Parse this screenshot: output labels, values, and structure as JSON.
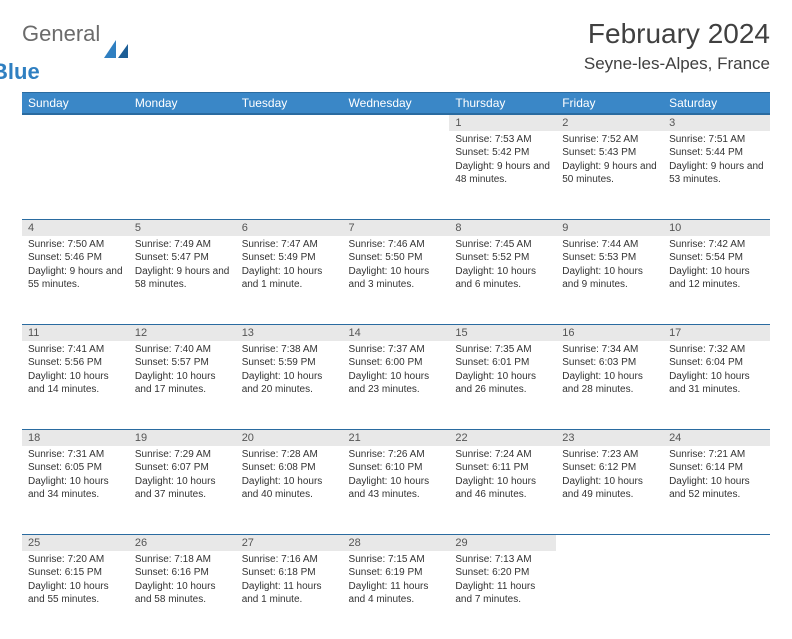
{
  "brand": {
    "general": "General",
    "blue": "Blue"
  },
  "colors": {
    "header_bg": "#3a87c7",
    "header_text": "#ffffff",
    "rule": "#2a6ba0",
    "daynum_bg": "#e8e8e8",
    "text": "#333333",
    "logo_gray": "#6b6b6b",
    "logo_blue": "#2f7fc1"
  },
  "title": "February 2024",
  "location": "Seyne-les-Alpes, France",
  "weekdays": [
    "Sunday",
    "Monday",
    "Tuesday",
    "Wednesday",
    "Thursday",
    "Friday",
    "Saturday"
  ],
  "layout": {
    "first_weekday_index": 4,
    "days_in_month": 29
  },
  "days": {
    "1": {
      "sunrise": "7:53 AM",
      "sunset": "5:42 PM",
      "daylight": "9 hours and 48 minutes."
    },
    "2": {
      "sunrise": "7:52 AM",
      "sunset": "5:43 PM",
      "daylight": "9 hours and 50 minutes."
    },
    "3": {
      "sunrise": "7:51 AM",
      "sunset": "5:44 PM",
      "daylight": "9 hours and 53 minutes."
    },
    "4": {
      "sunrise": "7:50 AM",
      "sunset": "5:46 PM",
      "daylight": "9 hours and 55 minutes."
    },
    "5": {
      "sunrise": "7:49 AM",
      "sunset": "5:47 PM",
      "daylight": "9 hours and 58 minutes."
    },
    "6": {
      "sunrise": "7:47 AM",
      "sunset": "5:49 PM",
      "daylight": "10 hours and 1 minute."
    },
    "7": {
      "sunrise": "7:46 AM",
      "sunset": "5:50 PM",
      "daylight": "10 hours and 3 minutes."
    },
    "8": {
      "sunrise": "7:45 AM",
      "sunset": "5:52 PM",
      "daylight": "10 hours and 6 minutes."
    },
    "9": {
      "sunrise": "7:44 AM",
      "sunset": "5:53 PM",
      "daylight": "10 hours and 9 minutes."
    },
    "10": {
      "sunrise": "7:42 AM",
      "sunset": "5:54 PM",
      "daylight": "10 hours and 12 minutes."
    },
    "11": {
      "sunrise": "7:41 AM",
      "sunset": "5:56 PM",
      "daylight": "10 hours and 14 minutes."
    },
    "12": {
      "sunrise": "7:40 AM",
      "sunset": "5:57 PM",
      "daylight": "10 hours and 17 minutes."
    },
    "13": {
      "sunrise": "7:38 AM",
      "sunset": "5:59 PM",
      "daylight": "10 hours and 20 minutes."
    },
    "14": {
      "sunrise": "7:37 AM",
      "sunset": "6:00 PM",
      "daylight": "10 hours and 23 minutes."
    },
    "15": {
      "sunrise": "7:35 AM",
      "sunset": "6:01 PM",
      "daylight": "10 hours and 26 minutes."
    },
    "16": {
      "sunrise": "7:34 AM",
      "sunset": "6:03 PM",
      "daylight": "10 hours and 28 minutes."
    },
    "17": {
      "sunrise": "7:32 AM",
      "sunset": "6:04 PM",
      "daylight": "10 hours and 31 minutes."
    },
    "18": {
      "sunrise": "7:31 AM",
      "sunset": "6:05 PM",
      "daylight": "10 hours and 34 minutes."
    },
    "19": {
      "sunrise": "7:29 AM",
      "sunset": "6:07 PM",
      "daylight": "10 hours and 37 minutes."
    },
    "20": {
      "sunrise": "7:28 AM",
      "sunset": "6:08 PM",
      "daylight": "10 hours and 40 minutes."
    },
    "21": {
      "sunrise": "7:26 AM",
      "sunset": "6:10 PM",
      "daylight": "10 hours and 43 minutes."
    },
    "22": {
      "sunrise": "7:24 AM",
      "sunset": "6:11 PM",
      "daylight": "10 hours and 46 minutes."
    },
    "23": {
      "sunrise": "7:23 AM",
      "sunset": "6:12 PM",
      "daylight": "10 hours and 49 minutes."
    },
    "24": {
      "sunrise": "7:21 AM",
      "sunset": "6:14 PM",
      "daylight": "10 hours and 52 minutes."
    },
    "25": {
      "sunrise": "7:20 AM",
      "sunset": "6:15 PM",
      "daylight": "10 hours and 55 minutes."
    },
    "26": {
      "sunrise": "7:18 AM",
      "sunset": "6:16 PM",
      "daylight": "10 hours and 58 minutes."
    },
    "27": {
      "sunrise": "7:16 AM",
      "sunset": "6:18 PM",
      "daylight": "11 hours and 1 minute."
    },
    "28": {
      "sunrise": "7:15 AM",
      "sunset": "6:19 PM",
      "daylight": "11 hours and 4 minutes."
    },
    "29": {
      "sunrise": "7:13 AM",
      "sunset": "6:20 PM",
      "daylight": "11 hours and 7 minutes."
    }
  },
  "labels": {
    "sunrise": "Sunrise:",
    "sunset": "Sunset:",
    "daylight": "Daylight:"
  }
}
